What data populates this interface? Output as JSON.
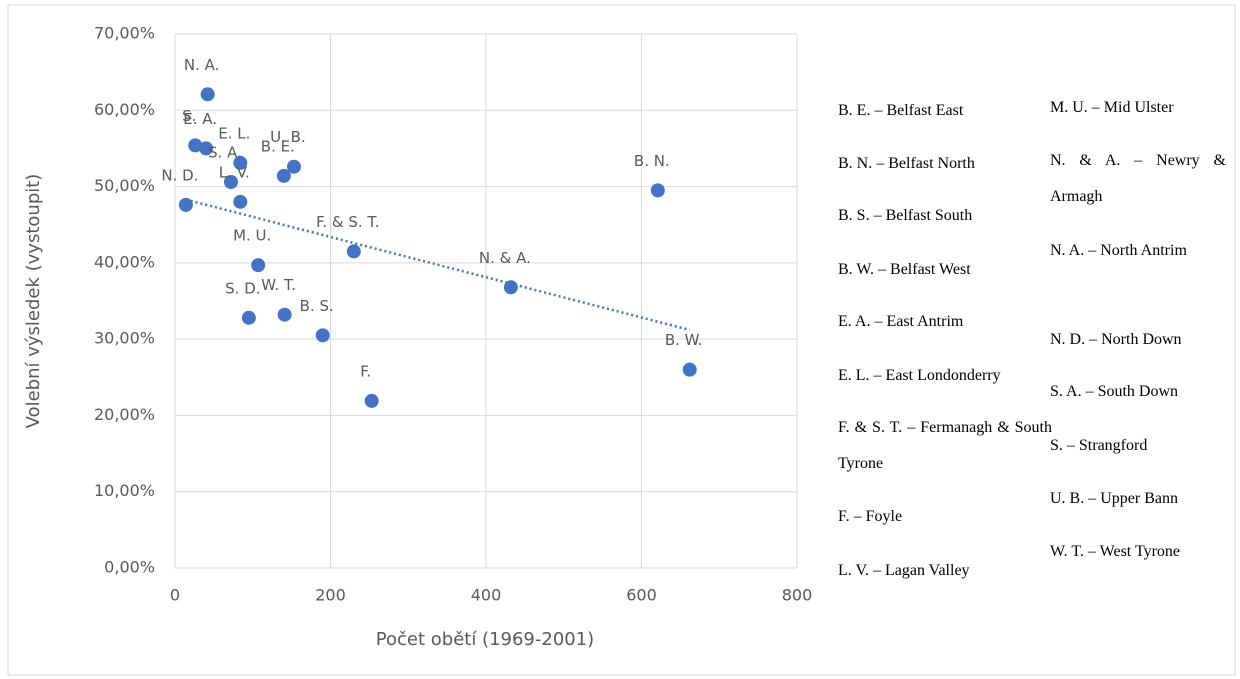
{
  "chart_data": {
    "type": "scatter",
    "x_label": "Počet obětí (1969-2001)",
    "y_label": "Volební výsledek (vystoupit)",
    "x": [
      42,
      40,
      26,
      84,
      140,
      153,
      72,
      84,
      14,
      107,
      95,
      141,
      190,
      230,
      253,
      432,
      621,
      662
    ],
    "values": [
      62.1,
      55.0,
      55.4,
      53.1,
      51.4,
      52.6,
      50.6,
      48.0,
      47.6,
      39.7,
      32.8,
      33.2,
      30.5,
      41.5,
      21.9,
      36.8,
      49.5,
      26.0
    ],
    "point_labels": [
      "N. A.",
      "E. A.",
      "S.",
      "E. L.",
      "B. E.",
      "U. B.",
      "S. A.",
      "L. V.",
      "N. D.",
      "M. U.",
      "S. D.",
      "W. T.",
      "B. S.",
      "F. & S. T.",
      "F.",
      "N. & A.",
      "B. N.",
      "B. W."
    ],
    "color": "#4472c4",
    "trendline": {
      "x": [
        14,
        662
      ],
      "values": [
        48.3,
        31.2
      ]
    },
    "xlim": [
      0,
      800
    ],
    "xticks": [
      0,
      200,
      400,
      600,
      800
    ],
    "ylim": [
      0,
      70
    ],
    "yticks": [
      {
        "value": 0,
        "label": "0,00%"
      },
      {
        "value": 10,
        "label": "10,00%"
      },
      {
        "value": 20,
        "label": "20,00%"
      },
      {
        "value": 30,
        "label": "30,00%"
      },
      {
        "value": 40,
        "label": "40,00%"
      },
      {
        "value": 50,
        "label": "50,00%"
      },
      {
        "value": 60,
        "label": "60,00%"
      },
      {
        "value": 70,
        "label": "70,00%"
      }
    ],
    "grid": true,
    "key_left": [
      "B. E. – Belfast East",
      "B. N. – Belfast North",
      "B. S. – Belfast South",
      "B. W. – Belfast West",
      "E. A. – East Antrim",
      "E. L. – East Londonderry",
      "F. & S. T. – Fermanagh & South Tyrone",
      "F. – Foyle",
      "L. V. – Lagan Valley"
    ],
    "key_right": [
      "M. U. – Mid Ulster",
      "N. & A. – Newry & Armagh",
      "N. A. – North Antrim",
      "N. D. – North Down",
      "S. A. – South Down",
      "S. – Strangford",
      "U. B. – Upper Bann",
      "W. T. – West Tyrone"
    ]
  }
}
